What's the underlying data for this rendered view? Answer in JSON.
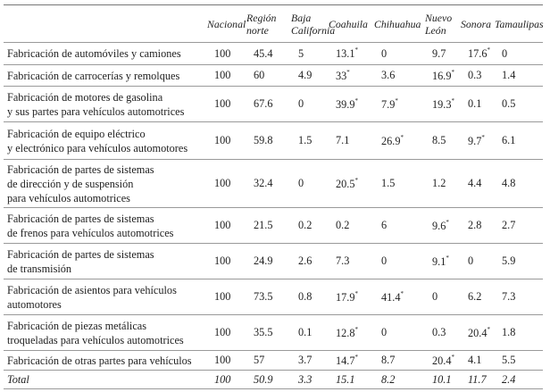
{
  "table": {
    "columns": [
      [
        "Nacional"
      ],
      [
        "Región",
        "norte"
      ],
      [
        "Baja",
        "California"
      ],
      [
        "Coahuila"
      ],
      [
        "Chihuahua"
      ],
      [
        "Nuevo",
        "León"
      ],
      [
        "Sonora"
      ],
      [
        "Tamaulipas"
      ]
    ],
    "rows": [
      {
        "label": [
          "Fabricación de automóviles y camiones"
        ],
        "cells": [
          "100",
          "45.4",
          "5",
          {
            "text": "13.1",
            "note": "*"
          },
          "0",
          "9.7",
          {
            "text": "17.6",
            "note": "*"
          },
          "0"
        ]
      },
      {
        "label": [
          "Fabricación de carrocerías y remolques"
        ],
        "cells": [
          "100",
          "60",
          "4.9",
          {
            "text": "33",
            "note": "*"
          },
          "3.6",
          {
            "text": "16.9",
            "note": "*"
          },
          "0.3",
          "1.4"
        ]
      },
      {
        "label": [
          "Fabricación de motores de gasolina",
          "y sus partes para vehículos automotrices"
        ],
        "cells": [
          "100",
          "67.6",
          "0",
          {
            "text": "39.9",
            "note": "*"
          },
          {
            "text": "7.9",
            "note": "*"
          },
          {
            "text": "19.3",
            "note": "*"
          },
          "0.1",
          "0.5"
        ]
      },
      {
        "label": [
          "Fabricación de equipo eléctrico",
          "y electrónico para vehículos automotores"
        ],
        "cells": [
          "100",
          "59.8",
          "1.5",
          "7.1",
          {
            "text": "26.9",
            "note": "*"
          },
          "8.5",
          {
            "text": "9.7",
            "note": "*"
          },
          "6.1"
        ]
      },
      {
        "label": [
          "Fabricación de partes de sistemas",
          "de dirección y de suspensión",
          "para vehículos automotrices"
        ],
        "cells": [
          "100",
          "32.4",
          "0",
          {
            "text": "20.5",
            "note": "*"
          },
          "1.5",
          "1.2",
          "4.4",
          "4.8"
        ]
      },
      {
        "label": [
          "Fabricación de partes de sistemas",
          "de frenos para vehículos automotrices"
        ],
        "cells": [
          "100",
          "21.5",
          "0.2",
          "0.2",
          "6",
          {
            "text": "9.6",
            "note": "*"
          },
          "2.8",
          "2.7"
        ]
      },
      {
        "label": [
          "Fabricación de partes de sistemas",
          "de transmisión"
        ],
        "cells": [
          "100",
          "24.9",
          "2.6",
          "7.3",
          "0",
          {
            "text": "9.1",
            "note": "*"
          },
          "0",
          "5.9"
        ]
      },
      {
        "label": [
          "Fabricación de asientos para vehículos",
          "automotores"
        ],
        "cells": [
          "100",
          "73.5",
          "0.8",
          {
            "text": "17.9",
            "note": "*"
          },
          {
            "text": "41.4",
            "note": "*"
          },
          "0",
          "6.2",
          "7.3"
        ]
      },
      {
        "label": [
          "Fabricación de piezas metálicas",
          "troqueladas para vehículos automotrices"
        ],
        "cells": [
          "100",
          "35.5",
          "0.1",
          {
            "text": "12.8",
            "note": "*"
          },
          "0",
          "0.3",
          {
            "text": "20.4",
            "note": "*"
          },
          "1.8"
        ]
      },
      {
        "label": [
          "Fabricación de otras partes para vehículos"
        ],
        "cells": [
          "100",
          "57",
          "3.7",
          {
            "text": "14.7",
            "note": "*"
          },
          "8.7",
          {
            "text": "20.4",
            "note": "*"
          },
          "4.1",
          "5.5"
        ]
      }
    ],
    "total": {
      "label": [
        "Total"
      ],
      "cells": [
        "100",
        "50.9",
        "3.3",
        "15.1",
        "8.2",
        "10.1",
        "11.7",
        "2.4"
      ]
    }
  }
}
